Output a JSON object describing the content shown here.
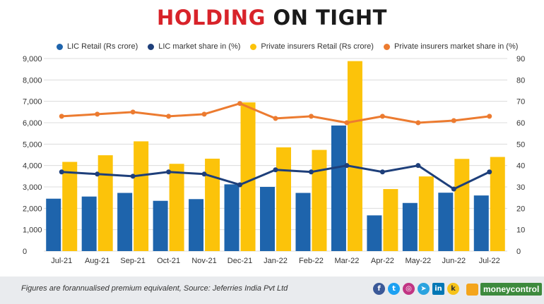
{
  "title": {
    "part1": "HOLDING",
    "part2": "ON TIGHT"
  },
  "colors": {
    "lic_retail": "#1e64ac",
    "lic_share": "#1e3f7a",
    "private_retail": "#fcc30a",
    "private_share": "#ec7b30",
    "title_red": "#d8232a",
    "grid": "#dcdcdc"
  },
  "chart_data": {
    "type": "bar",
    "categories": [
      "Jul-21",
      "Aug-21",
      "Sep-21",
      "Oct-21",
      "Nov-21",
      "Dec-21",
      "Jan-22",
      "Feb-22",
      "Mar-22",
      "Apr-22",
      "May-22",
      "Jun-22",
      "Jul-22"
    ],
    "series": [
      {
        "name": "LIC Retail (Rs crore)",
        "type": "bar",
        "axis": "left",
        "values": [
          2450,
          2550,
          2720,
          2350,
          2430,
          3120,
          3000,
          2720,
          5870,
          1670,
          2250,
          2730,
          2600
        ]
      },
      {
        "name": "Private insurers Retail (Rs crore)",
        "type": "bar",
        "axis": "left",
        "values": [
          4170,
          4480,
          5130,
          4080,
          4320,
          6950,
          4850,
          4730,
          8880,
          2900,
          3490,
          4310,
          4400
        ]
      },
      {
        "name": "LIC market share in (%)",
        "type": "line",
        "axis": "right",
        "values": [
          37,
          36,
          35,
          37,
          36,
          31,
          38,
          37,
          40,
          37,
          40,
          29,
          37
        ]
      },
      {
        "name": "Private insurers market share in (%)",
        "type": "line",
        "axis": "right",
        "values": [
          63,
          64,
          65,
          63,
          64,
          69,
          62,
          63,
          60,
          63,
          60,
          61,
          63
        ]
      }
    ],
    "left_axis": {
      "min": 0,
      "max": 9000,
      "step": 1000,
      "ticks": [
        "0",
        "1,000",
        "2,000",
        "3,000",
        "4,000",
        "5,000",
        "6,000",
        "7,000",
        "8,000",
        "9,000"
      ]
    },
    "right_axis": {
      "min": 0,
      "max": 90,
      "step": 10,
      "ticks": [
        "0",
        "10",
        "20",
        "30",
        "40",
        "50",
        "60",
        "70",
        "80",
        "90"
      ]
    },
    "legend": [
      "LIC Retail (Rs crore)",
      "LIC market share in (%)",
      "Private insurers Retail (Rs crore)",
      "Private insurers market share in (%)"
    ],
    "legend_position": "top"
  },
  "footer": {
    "source": "Figures are forannualised premium equivalent, Source: Jeferries India Pvt Ltd",
    "social_icons": [
      "facebook-icon",
      "twitter-icon",
      "instagram-icon",
      "telegram-icon",
      "linkedin-icon",
      "koo-icon"
    ],
    "social_glyphs": [
      "f",
      "t",
      "◎",
      "➤",
      "in",
      "k"
    ],
    "brand": "moneycontrol"
  }
}
